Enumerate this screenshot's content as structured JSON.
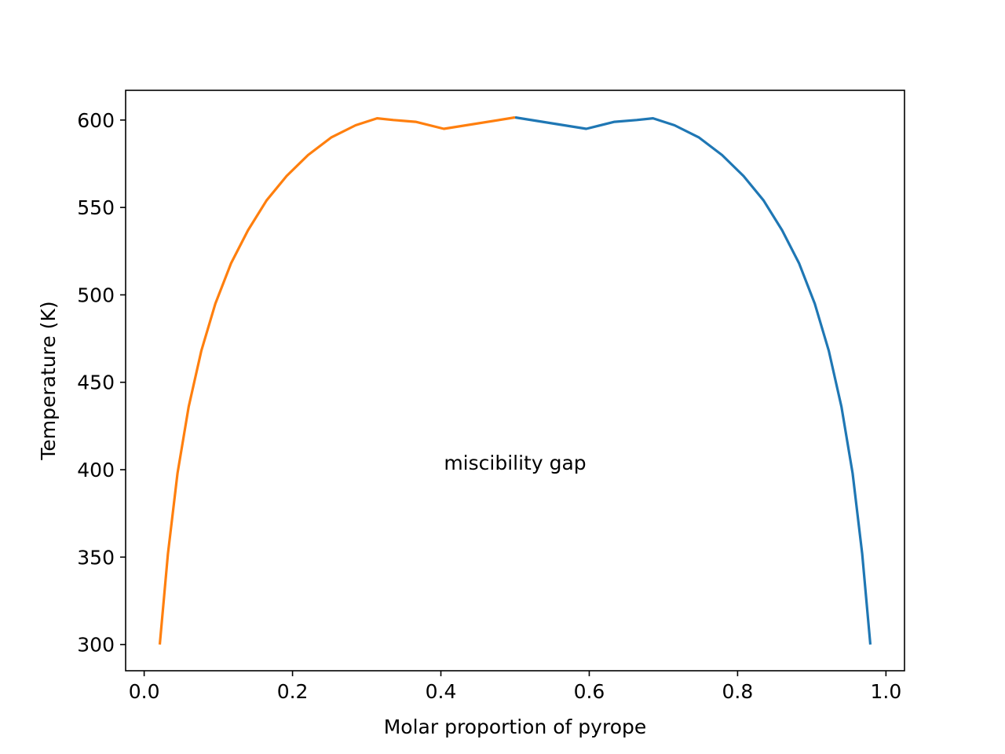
{
  "chart_data": {
    "type": "line",
    "title": "",
    "xlabel": "Molar proportion of pyrope",
    "ylabel": "Temperature (K)",
    "xlim": [
      -0.025,
      1.025
    ],
    "ylim": [
      285,
      617
    ],
    "grid": false,
    "legend": "none",
    "x_ticks": [
      0.0,
      0.2,
      0.4,
      0.6,
      0.8,
      1.0
    ],
    "x_tick_labels": [
      "0.0",
      "0.2",
      "0.4",
      "0.6",
      "0.8",
      "1.0"
    ],
    "y_ticks": [
      300,
      350,
      400,
      450,
      500,
      550,
      600
    ],
    "y_tick_labels": [
      "300",
      "350",
      "400",
      "450",
      "500",
      "550",
      "600"
    ],
    "annotations": [
      {
        "text": "miscibility gap",
        "x": 0.5,
        "y": 404
      }
    ],
    "series": [
      {
        "color": "#1f77b4",
        "x": [
          0.979,
          0.968,
          0.955,
          0.94,
          0.923,
          0.904,
          0.883,
          0.86,
          0.835,
          0.808,
          0.779,
          0.748,
          0.715,
          0.686,
          0.664,
          0.634,
          0.596,
          0.5
        ],
        "y": [
          300,
          352,
          398,
          436,
          468,
          495,
          518,
          537,
          554,
          568,
          580,
          590,
          597,
          601,
          600,
          599,
          595,
          601.5
        ]
      },
      {
        "color": "#ff7f0e",
        "x": [
          0.021,
          0.032,
          0.045,
          0.06,
          0.077,
          0.096,
          0.117,
          0.14,
          0.165,
          0.192,
          0.221,
          0.252,
          0.285,
          0.314,
          0.336,
          0.366,
          0.404,
          0.5
        ],
        "y": [
          300,
          352,
          398,
          436,
          468,
          495,
          518,
          537,
          554,
          568,
          580,
          590,
          597,
          601,
          600,
          599,
          595,
          601.5
        ]
      }
    ]
  }
}
